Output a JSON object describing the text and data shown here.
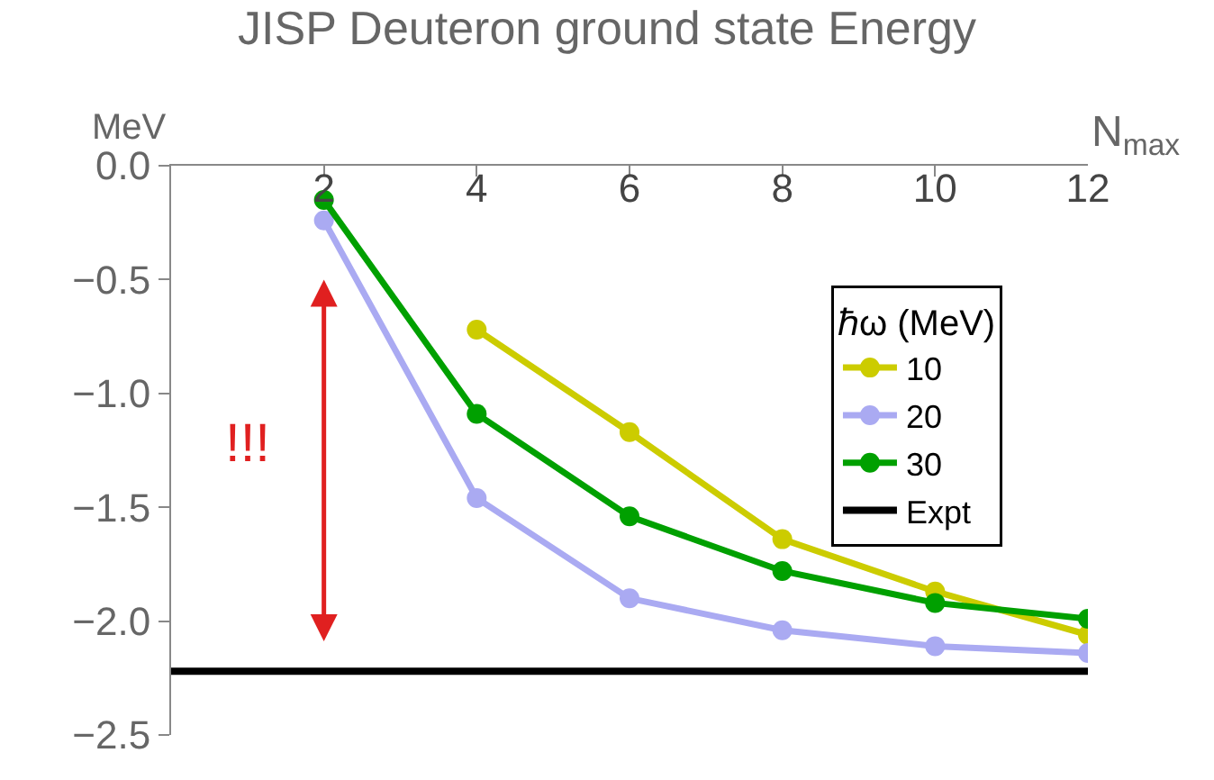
{
  "chart_data": {
    "type": "line",
    "title": "JISP Deuteron ground state Energy",
    "xlabel": "N$_{max}$",
    "ylabel": "MeV",
    "legend_title": "ℏω (MeV)",
    "x": [
      2,
      4,
      6,
      8,
      10,
      12
    ],
    "series": [
      {
        "name": "10",
        "color": "#cccc00",
        "values": [
          null,
          -0.72,
          -1.17,
          -1.64,
          -1.87,
          -2.06
        ]
      },
      {
        "name": "20",
        "color": "#aaaaf2",
        "values": [
          -0.24,
          -1.46,
          -1.9,
          -2.04,
          -2.11,
          -2.14
        ]
      },
      {
        "name": "30",
        "color": "#00a000",
        "values": [
          -0.15,
          -1.09,
          -1.54,
          -1.78,
          -1.92,
          -1.99
        ]
      },
      {
        "name": "Expt",
        "color": "#000000",
        "x": [
          0,
          12
        ],
        "values": [
          -2.22,
          -2.22
        ],
        "marker": "none"
      }
    ],
    "annotations": [
      "!!!"
    ],
    "marker": "circle",
    "line_style": "solid",
    "legend": "right",
    "xlim": [
      0,
      12
    ],
    "xticks": [
      2,
      4,
      6,
      8,
      10,
      12
    ],
    "ylim": [
      -2.5,
      0
    ],
    "yticks": [
      {
        "value": -2.5,
        "label": "−2.5"
      },
      {
        "value": -2.0,
        "label": "−2.0"
      },
      {
        "value": -1.5,
        "label": "−1.5"
      },
      {
        "value": -1.0,
        "label": "−1.0"
      },
      {
        "value": -0.5,
        "label": "−0.5"
      },
      {
        "value": 0,
        "label": "0.0"
      }
    ]
  }
}
